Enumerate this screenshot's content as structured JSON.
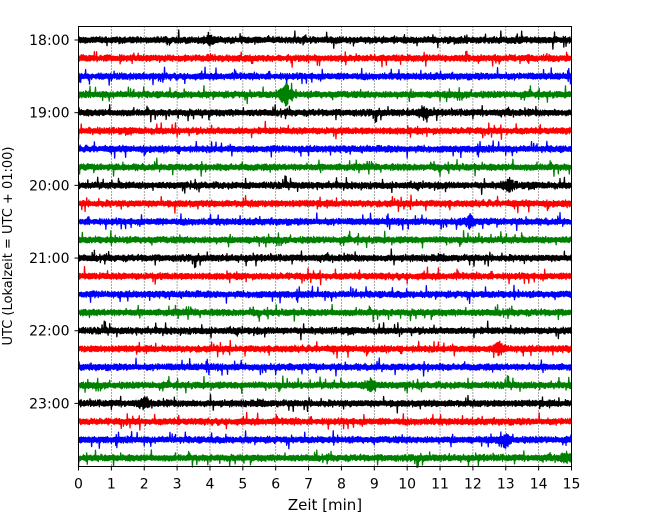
{
  "chart_data": {
    "type": "line",
    "title": "",
    "xlabel": "Zeit  [min]",
    "ylabel": "UTC (Lokalzeit = UTC + 01:00)",
    "xlim": [
      0,
      15
    ],
    "xticks": [
      0,
      1,
      2,
      3,
      4,
      5,
      6,
      7,
      8,
      9,
      10,
      11,
      12,
      13,
      14,
      15
    ],
    "xtick_labels": [
      "0",
      "1",
      "2",
      "3",
      "4",
      "5",
      "6",
      "7",
      "8",
      "9",
      "10",
      "11",
      "12",
      "13",
      "14",
      "15"
    ],
    "ytick_labels": [
      "18:00",
      "19:00",
      "20:00",
      "21:00",
      "22:00",
      "23:00"
    ],
    "ytick_rows": [
      0,
      4,
      8,
      12,
      16,
      20
    ],
    "grid": "vertical dotted lines at each minute",
    "legend": "none",
    "row_minutes": 15,
    "rows": [
      {
        "start": "18:00",
        "color": "#000000"
      },
      {
        "start": "18:15",
        "color": "#ff0000"
      },
      {
        "start": "18:30",
        "color": "#0000ff"
      },
      {
        "start": "18:45",
        "color": "#008000"
      },
      {
        "start": "19:00",
        "color": "#000000"
      },
      {
        "start": "19:15",
        "color": "#ff0000"
      },
      {
        "start": "19:30",
        "color": "#0000ff"
      },
      {
        "start": "19:45",
        "color": "#008000"
      },
      {
        "start": "20:00",
        "color": "#000000"
      },
      {
        "start": "20:15",
        "color": "#ff0000"
      },
      {
        "start": "20:30",
        "color": "#0000ff"
      },
      {
        "start": "20:45",
        "color": "#008000"
      },
      {
        "start": "21:00",
        "color": "#000000"
      },
      {
        "start": "21:15",
        "color": "#ff0000"
      },
      {
        "start": "21:30",
        "color": "#0000ff"
      },
      {
        "start": "21:45",
        "color": "#008000"
      },
      {
        "start": "22:00",
        "color": "#000000"
      },
      {
        "start": "22:15",
        "color": "#ff0000"
      },
      {
        "start": "22:30",
        "color": "#0000ff"
      },
      {
        "start": "22:45",
        "color": "#008000"
      },
      {
        "start": "23:00",
        "color": "#000000"
      },
      {
        "start": "23:15",
        "color": "#ff0000"
      },
      {
        "start": "23:30",
        "color": "#0000ff"
      },
      {
        "start": "23:45",
        "color": "#008000"
      }
    ],
    "events": [
      {
        "row": 3,
        "minute": 6.3,
        "amplitude": 1.0
      },
      {
        "row": 0,
        "minute": 4.0,
        "amplitude": 0.35
      },
      {
        "row": 4,
        "minute": 10.5,
        "amplitude": 0.4
      },
      {
        "row": 8,
        "minute": 13.1,
        "amplitude": 0.45
      },
      {
        "row": 10,
        "minute": 11.9,
        "amplitude": 0.4
      },
      {
        "row": 17,
        "minute": 12.8,
        "amplitude": 0.4
      },
      {
        "row": 19,
        "minute": 8.9,
        "amplitude": 0.45
      },
      {
        "row": 22,
        "minute": 13.0,
        "amplitude": 0.45
      },
      {
        "row": 23,
        "minute": 14.8,
        "amplitude": 0.3
      },
      {
        "row": 20,
        "minute": 2.0,
        "amplitude": 0.3
      }
    ]
  }
}
